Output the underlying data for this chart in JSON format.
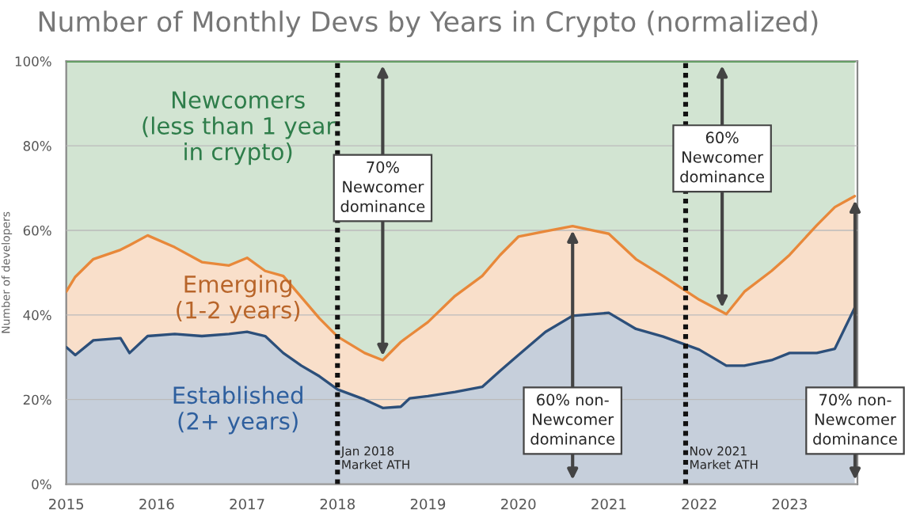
{
  "chart_data": {
    "type": "area",
    "stacked": true,
    "title": "Number of Monthly Devs by Years in Crypto (normalized)",
    "ylabel": "Number of developers",
    "xlim": [
      2015,
      2023.75
    ],
    "xticks": [
      2015,
      2016,
      2017,
      2018,
      2019,
      2020,
      2021,
      2022,
      2023
    ],
    "ylim": [
      0,
      100
    ],
    "yticks": [
      {
        "value": 0,
        "label": "0%"
      },
      {
        "value": 20,
        "label": "20%"
      },
      {
        "value": 40,
        "label": "40%"
      },
      {
        "value": 60,
        "label": "60%"
      },
      {
        "value": 80,
        "label": "80%"
      },
      {
        "value": 100,
        "label": "100%"
      }
    ],
    "grid": "y",
    "legend": false,
    "series": [
      {
        "name": "Established\n(2+ years)",
        "color": "#2c4f7a",
        "x": [
          2015,
          2015.1,
          2015.3,
          2015.6,
          2015.7,
          2015.9,
          2016.2,
          2016.5,
          2016.8,
          2017.0,
          2017.2,
          2017.4,
          2017.6,
          2017.8,
          2018.0,
          2018.3,
          2018.5,
          2018.7,
          2018.8,
          2019.0,
          2019.3,
          2019.6,
          2019.8,
          2020.0,
          2020.3,
          2020.6,
          2021.0,
          2021.3,
          2021.6,
          2022.0,
          2022.3,
          2022.5,
          2022.8,
          2023.0,
          2023.3,
          2023.5,
          2023.72
        ],
        "values": [
          32.4,
          30.5,
          34,
          34.5,
          31,
          35,
          35.5,
          35,
          35.5,
          36,
          35,
          31,
          28,
          25.5,
          22.4,
          20,
          18,
          18.3,
          20.3,
          20.8,
          21.8,
          23,
          26.8,
          30.5,
          36,
          39.8,
          40.5,
          36.7,
          34.9,
          31.8,
          28,
          28,
          29.3,
          31,
          31,
          32,
          41.7
        ]
      },
      {
        "name": "Emerging\n(1-2 years)",
        "color": "#e8883a",
        "x": [
          2015,
          2015.1,
          2015.3,
          2015.6,
          2015.7,
          2015.9,
          2016.2,
          2016.5,
          2016.8,
          2017.0,
          2017.2,
          2017.4,
          2017.6,
          2017.8,
          2018.0,
          2018.3,
          2018.5,
          2018.7,
          2018.8,
          2019.0,
          2019.3,
          2019.6,
          2019.8,
          2020.0,
          2020.3,
          2020.6,
          2021.0,
          2021.3,
          2021.6,
          2022.0,
          2022.3,
          2022.5,
          2022.8,
          2023.0,
          2023.3,
          2023.5,
          2023.72
        ],
        "values": [
          13.1,
          18.5,
          19.2,
          20.9,
          25.5,
          23.8,
          20.5,
          17.5,
          16.2,
          17.5,
          15.4,
          18.2,
          16.2,
          13.7,
          12.5,
          11,
          11.3,
          15.3,
          14.9,
          17.5,
          22.7,
          26.2,
          27.4,
          28,
          23.8,
          21.2,
          18.7,
          16.5,
          14.3,
          11.8,
          12.2,
          17.5,
          21.1,
          23.2,
          30.2,
          33.5,
          26.4
        ]
      },
      {
        "name": "Newcomers\n(less than 1 year\nin crypto)",
        "color": "#5a9a5a",
        "x": [
          2015,
          2015.1,
          2015.3,
          2015.6,
          2015.7,
          2015.9,
          2016.2,
          2016.5,
          2016.8,
          2017.0,
          2017.2,
          2017.4,
          2017.6,
          2017.8,
          2018.0,
          2018.3,
          2018.5,
          2018.7,
          2018.8,
          2019.0,
          2019.3,
          2019.6,
          2019.8,
          2020.0,
          2020.3,
          2020.6,
          2021.0,
          2021.3,
          2021.6,
          2022.0,
          2022.3,
          2022.5,
          2022.8,
          2023.0,
          2023.3,
          2023.5,
          2023.72
        ],
        "values": [
          54.5,
          51,
          46.8,
          44.6,
          43.5,
          41.2,
          44,
          47.5,
          48.3,
          46.5,
          49.6,
          50.8,
          55.8,
          60.8,
          65.1,
          69,
          70.7,
          66.4,
          64.8,
          61.7,
          55.5,
          50.8,
          45.8,
          41.5,
          40.2,
          39,
          40.8,
          46.8,
          50.8,
          56.4,
          59.8,
          54.5,
          49.6,
          45.8,
          38.8,
          34.5,
          31.9
        ]
      }
    ],
    "ref_lines": [
      {
        "axis": "x",
        "value": 2018.0,
        "label": "Jan 2018\nMarket ATH",
        "line_style": "dotted",
        "color": "#111111"
      },
      {
        "axis": "x",
        "value": 2021.85,
        "label": "Nov 2021\nMarket ATH",
        "line_style": "dotted",
        "color": "#111111"
      }
    ],
    "annotations": [
      "70%\nNewcomer\ndominance",
      "60% non-\nNewcomer\ndominance",
      "60%\nNewcomer\ndominance",
      "70% non-\nNewcomer\ndominance"
    ]
  }
}
